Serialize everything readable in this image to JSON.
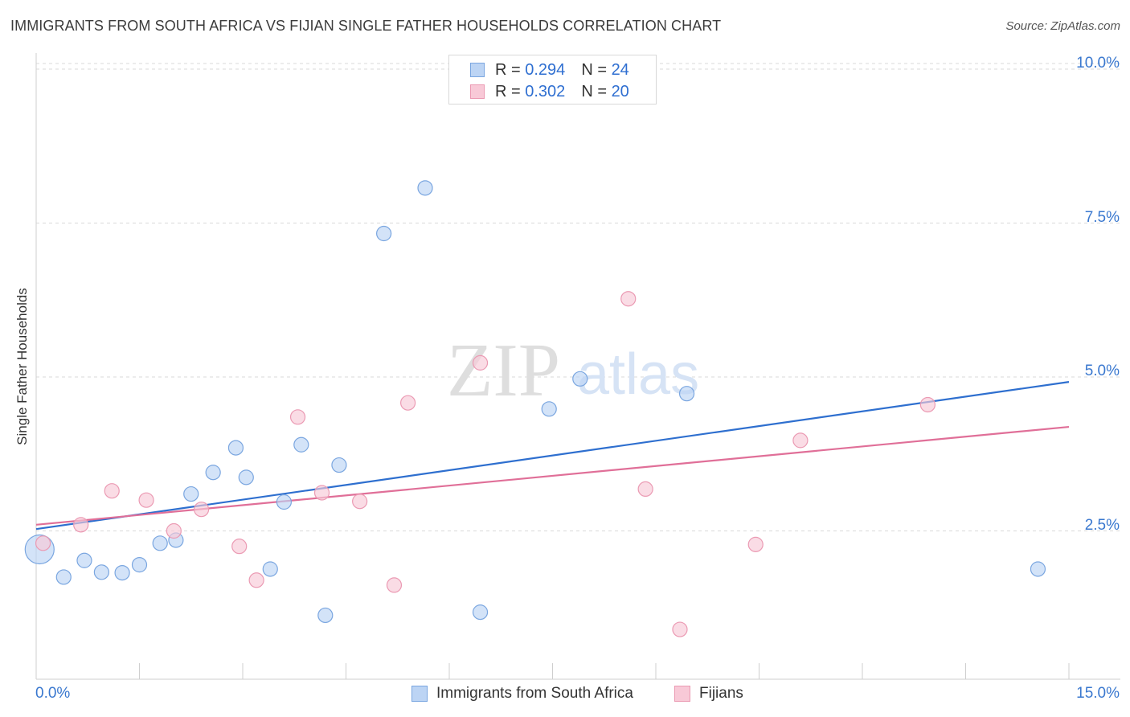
{
  "title": "IMMIGRANTS FROM SOUTH AFRICA VS FIJIAN SINGLE FATHER HOUSEHOLDS CORRELATION CHART",
  "source": "Source: ZipAtlas.com",
  "watermark": {
    "zip": "ZIP",
    "atlas": "atlas"
  },
  "legend": {
    "rows": [
      {
        "r_label": "R =",
        "r_value": "0.294",
        "n_label": "N =",
        "n_value": "24"
      },
      {
        "r_label": "R =",
        "r_value": "0.302",
        "n_label": "N =",
        "n_value": "20"
      }
    ]
  },
  "colors": {
    "blue_fill": "#bcd4f4",
    "blue_stroke": "#7aa6e0",
    "blue_line": "#2e6fcf",
    "pink_fill": "#f8c9d7",
    "pink_stroke": "#eb9ab3",
    "pink_line": "#e06f98",
    "accent_text": "#3a78cf",
    "grid": "#d9d9d9"
  },
  "chart_data": {
    "type": "scatter",
    "title": "IMMIGRANTS FROM SOUTH AFRICA VS FIJIAN SINGLE FATHER HOUSEHOLDS CORRELATION CHART",
    "xlabel": "",
    "ylabel": "Single Father Households",
    "xlim": [
      0,
      15
    ],
    "ylim": [
      0,
      10
    ],
    "x_ticks": [
      "0.0%",
      "15.0%"
    ],
    "y_ticks": [
      {
        "value": 2.5,
        "label": "2.5%"
      },
      {
        "value": 5.0,
        "label": "5.0%"
      },
      {
        "value": 7.5,
        "label": "7.5%"
      },
      {
        "value": 10.0,
        "label": "10.0%"
      }
    ],
    "grid": true,
    "legend_position": "top-center",
    "series": [
      {
        "name": "Immigrants from South Africa",
        "color": "#bcd4f4",
        "points": [
          [
            0.05,
            2.2,
            18
          ],
          [
            0.4,
            1.75,
            9
          ],
          [
            0.7,
            2.02,
            9
          ],
          [
            0.95,
            1.83,
            9
          ],
          [
            1.25,
            1.82,
            9
          ],
          [
            1.5,
            1.95,
            9
          ],
          [
            1.8,
            2.3,
            9
          ],
          [
            2.03,
            2.35,
            9
          ],
          [
            2.25,
            3.1,
            9
          ],
          [
            2.57,
            3.45,
            9
          ],
          [
            2.9,
            3.85,
            9
          ],
          [
            3.05,
            3.37,
            9
          ],
          [
            3.4,
            1.88,
            9
          ],
          [
            3.6,
            2.97,
            9
          ],
          [
            3.85,
            3.9,
            9
          ],
          [
            4.2,
            1.13,
            9
          ],
          [
            4.4,
            3.57,
            9
          ],
          [
            5.05,
            7.33,
            9
          ],
          [
            5.65,
            8.07,
            9
          ],
          [
            6.45,
            1.18,
            9
          ],
          [
            7.45,
            4.48,
            9
          ],
          [
            7.9,
            4.97,
            9
          ],
          [
            9.45,
            4.73,
            9
          ],
          [
            14.55,
            1.88,
            9
          ]
        ],
        "trend": {
          "x0": 0,
          "y0": 2.53,
          "x1": 15,
          "y1": 4.92
        }
      },
      {
        "name": "Fijians",
        "color": "#f8c9d7",
        "points": [
          [
            0.1,
            2.3,
            9
          ],
          [
            0.65,
            2.6,
            9
          ],
          [
            1.1,
            3.15,
            9
          ],
          [
            1.6,
            3.0,
            9
          ],
          [
            2.0,
            2.5,
            9
          ],
          [
            2.4,
            2.85,
            9
          ],
          [
            2.95,
            2.25,
            9
          ],
          [
            3.2,
            1.7,
            9
          ],
          [
            3.8,
            4.35,
            9
          ],
          [
            4.15,
            3.12,
            9
          ],
          [
            4.7,
            2.98,
            9
          ],
          [
            5.2,
            1.62,
            9
          ],
          [
            5.4,
            4.58,
            9
          ],
          [
            6.45,
            5.23,
            9
          ],
          [
            8.6,
            6.27,
            9
          ],
          [
            8.85,
            3.18,
            9
          ],
          [
            9.35,
            0.9,
            9
          ],
          [
            10.45,
            2.28,
            9
          ],
          [
            11.1,
            3.97,
            9
          ],
          [
            12.95,
            4.55,
            9
          ]
        ],
        "trend": {
          "x0": 0,
          "y0": 2.6,
          "x1": 15,
          "y1": 4.19
        }
      }
    ]
  }
}
